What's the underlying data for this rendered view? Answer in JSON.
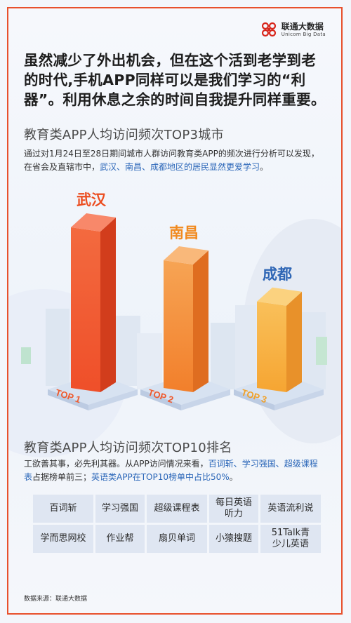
{
  "logo": {
    "cn": "联通大数据",
    "en": "Unicom Big Data"
  },
  "intro": "虽然减少了外出机会，但在这个活到老学到老的时代,手机APP同样可以是我们学习的“利器”。利用休息之余的时间自我提升同样重要。",
  "section1": {
    "title": "教育类APP人均访问频次TOP3城市",
    "desc_plain": "通过对1月24日至28日期间城市人群访问教育类APP的频次进行分析可以发现，在省会及直辖市中，",
    "desc_highlight": "武汉、南昌、成都地区的居民显然更爱学习",
    "desc_end": "。"
  },
  "colors": {
    "wuhan": "#ef5a33",
    "nanchang": "#f28a2c",
    "chengdu": "#f7ad37",
    "label_wuhan": "#ec4d20",
    "label_nanchang": "#f18a1f",
    "label_chengdu": "#2f66b5"
  },
  "chart_data": {
    "type": "bar",
    "title": "",
    "categories": [
      "武汉",
      "南昌",
      "成都"
    ],
    "values": [
      100,
      80,
      55
    ],
    "ranks": [
      "TOP 1",
      "TOP 2",
      "TOP 3"
    ],
    "xlabel": "",
    "ylabel": "",
    "grid": false,
    "legend": "none"
  },
  "section2": {
    "title": "教育类APP人均访问频次TOP10排名",
    "desc_plain": "工欲善其事，必先利其器。从APP访问情况来看，",
    "desc_highlight1": "百词斩、学习强国、超级课程表",
    "desc_mid": "占据榜单前三；",
    "desc_highlight2": "英语类APP在TOP10榜单中占比50%",
    "desc_end": "。"
  },
  "ranking": [
    [
      "百词斩",
      "学习强国",
      "超级课程表",
      "每日英语\n听力",
      "英语流利说"
    ],
    [
      "学而思网校",
      "作业帮",
      "扇贝单词",
      "小猿搜题",
      "51Talk青\n少儿英语"
    ]
  ],
  "source": "数据来源：联通大数据"
}
